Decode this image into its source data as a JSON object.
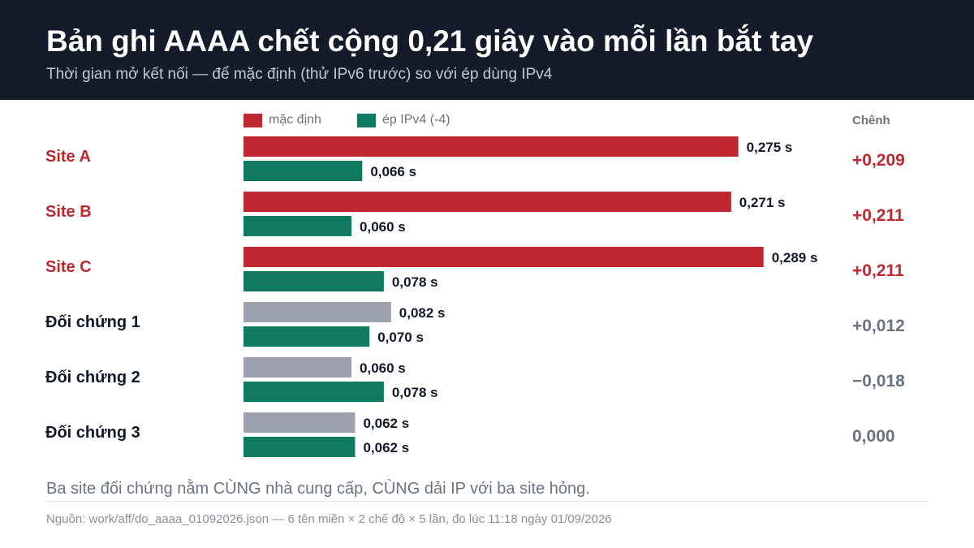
{
  "header": {
    "title": "Bản ghi AAAA chết cộng 0,21 giây vào mỗi lần bắt tay",
    "subtitle": "Thời gian mở kết nối — để mặc định (thử IPv6 trước) so với ép dùng IPv4"
  },
  "colors": {
    "default_broken": "#c0282f",
    "default_control": "#9ca1ad",
    "forced_ipv4": "#0f7a5f",
    "label_broken": "#c0282f",
    "label_control": "#111827",
    "delta_broken": "#c0282f",
    "delta_control": "#6b7280",
    "value_text": "#111827"
  },
  "chart_data": {
    "type": "bar",
    "orientation": "horizontal",
    "title": "Bản ghi AAAA chết cộng 0,21 giây vào mỗi lần bắt tay",
    "subtitle": "Thời gian mở kết nối — để mặc định (thử IPv6 trước) so với ép dùng IPv4",
    "unit": "s",
    "categories": [
      "Site A",
      "Site B",
      "Site C",
      "Đối chứng 1",
      "Đối chứng 2",
      "Đối chứng 3"
    ],
    "series": [
      {
        "name": "mặc định",
        "values": [
          0.275,
          0.271,
          0.289,
          0.082,
          0.06,
          0.062
        ],
        "labels": [
          "0,275 s",
          "0,271 s",
          "0,289 s",
          "0,082 s",
          "0,060 s",
          "0,062 s"
        ]
      },
      {
        "name": "ép IPv4 (-4)",
        "values": [
          0.066,
          0.06,
          0.078,
          0.07,
          0.078,
          0.062
        ],
        "labels": [
          "0,066 s",
          "0,060 s",
          "0,078 s",
          "0,070 s",
          "0,078 s",
          "0,062 s"
        ]
      }
    ],
    "delta": {
      "header": "Chênh",
      "values": [
        0.209,
        0.211,
        0.211,
        0.012,
        -0.018,
        0.0
      ],
      "labels": [
        "+0,209",
        "+0,211",
        "+0,211",
        "+0,012",
        "−0,018",
        "0,000"
      ]
    },
    "broken": [
      true,
      true,
      true,
      false,
      false,
      false
    ],
    "xlim": [
      0,
      0.29
    ],
    "grid": false,
    "legend_position": "top"
  },
  "footnote": "Ba site đối chứng nằm CÙNG nhà cung cấp, CÙNG dải IP với ba site hỏng.",
  "source": "Nguồn: work/aff/do_aaaa_01092026.json — 6 tên miền × 2 chế độ × 5 lần, đo lúc 11:18 ngày 01/09/2026"
}
